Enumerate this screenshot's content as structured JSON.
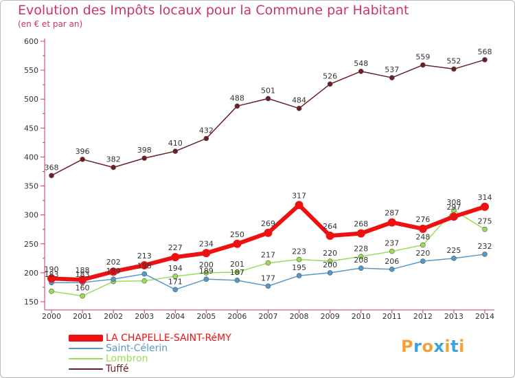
{
  "header": {
    "title": "Evolution des Impôts locaux pour la Commune par Habitant",
    "subtitle": "(en € et par an)"
  },
  "logo": {
    "text": "Proxiti",
    "letters": [
      "P",
      "r",
      "o",
      "x",
      "i",
      "t",
      "i"
    ],
    "colors": [
      "#f2a23a",
      "#3aa3d9",
      "#f2a23a",
      "#3aa3d9",
      "#f2a23a",
      "#3aa3d9",
      "#f2a23a"
    ]
  },
  "chart_data": {
    "type": "line",
    "x": [
      "2000",
      "2001",
      "2002",
      "2003",
      "2004",
      "2005",
      "2006",
      "2007",
      "2008",
      "2009",
      "2010",
      "2011",
      "2012",
      "2013",
      "2014"
    ],
    "ylim": [
      150,
      600
    ],
    "yticks": [
      150,
      200,
      250,
      300,
      350,
      400,
      450,
      500,
      550,
      600
    ],
    "grid": false,
    "legend_position": "bottom-left",
    "series": [
      {
        "name": "Tuffé",
        "color": "#6b1f24",
        "values": [
          368,
          396,
          382,
          398,
          410,
          432,
          488,
          501,
          484,
          526,
          548,
          537,
          559,
          552,
          568
        ]
      },
      {
        "name": "Lombron",
        "color": "#99dd55",
        "values": [
          168,
          160,
          185,
          186,
          194,
          200,
          201,
          217,
          223,
          220,
          228,
          237,
          248,
          308,
          275
        ]
      },
      {
        "name": "Saint-Célerin",
        "color": "#5599cc",
        "values": [
          183,
          183,
          189,
          198,
          171,
          189,
          187,
          177,
          195,
          200,
          208,
          206,
          220,
          225,
          232
        ]
      },
      {
        "name": "LA CHAPELLE-SAINT-RéMY",
        "color": "#ee1111",
        "values": [
          190,
          188,
          202,
          213,
          227,
          234,
          250,
          269,
          317,
          264,
          268,
          287,
          276,
          297,
          314
        ]
      }
    ],
    "value_labels": [
      {
        "series": "Tuffé",
        "labels": [
          "368",
          "396",
          "382",
          "398",
          "410",
          "432",
          "488",
          "501",
          "484",
          "526",
          "548",
          "537",
          "559",
          "552",
          "568"
        ]
      },
      {
        "series": "Lombron",
        "labels": [
          "",
          "160",
          "",
          "",
          "194",
          "200",
          "201",
          "217",
          "223",
          "220",
          "228",
          "237",
          "248",
          "308",
          "275"
        ]
      },
      {
        "series": "Saint-Célerin",
        "labels": [
          "183",
          "183",
          "189",
          "198",
          "171",
          "189",
          "187",
          "177",
          "195",
          "200",
          "208",
          "206",
          "220",
          "225",
          "232"
        ]
      },
      {
        "series": "LA CHAPELLE-SAINT-RéMY",
        "labels": [
          "190",
          "188",
          "202",
          "213",
          "227",
          "234",
          "250",
          "269",
          "317",
          "264",
          "268",
          "287",
          "276",
          "297",
          "314"
        ]
      }
    ]
  }
}
